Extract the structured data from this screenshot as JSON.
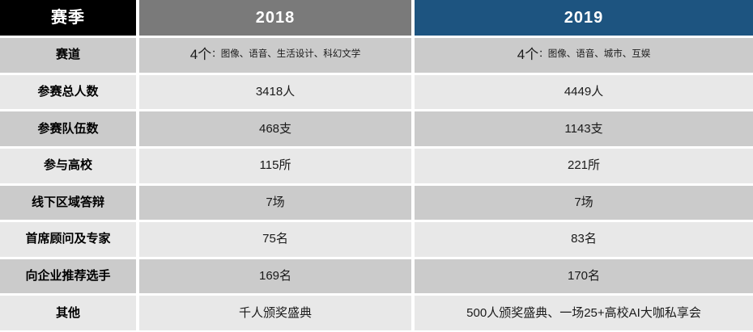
{
  "table": {
    "header": {
      "col0": "赛季",
      "col1": "2018",
      "col2": "2019"
    },
    "rows": [
      {
        "label": "赛道",
        "y2018_prefix": "4个",
        "y2018_rest": "：图像、语音、生活设计、科幻文学",
        "y2019_prefix": "4个",
        "y2019_rest": "：图像、语音、城市、互娱"
      },
      {
        "label": "参赛总人数",
        "y2018": "3418人",
        "y2019": "4449人"
      },
      {
        "label": "参赛队伍数",
        "y2018": "468支",
        "y2019": "1143支"
      },
      {
        "label": "参与高校",
        "y2018": "115所",
        "y2019": "221所"
      },
      {
        "label": "线下区域答辩",
        "y2018": "7场",
        "y2019": "7场"
      },
      {
        "label": "首席顾问及专家",
        "y2018": "75名",
        "y2019": "83名"
      },
      {
        "label": "向企业推荐选手",
        "y2018": "169名",
        "y2019": "170名"
      },
      {
        "label": "其他",
        "y2018": "千人颁奖盛典",
        "y2019": "500人颁奖盛典、一场25+高校AI大咖私享会"
      }
    ]
  },
  "colors": {
    "header_season_bg": "#000000",
    "header_2018_bg": "#7a7a7a",
    "header_2019_bg": "#1d5480",
    "row_dark_bg": "#cbcbcb",
    "row_light_bg": "#e8e8e8",
    "header_text": "#ffffff",
    "body_text": "#1a1a1a",
    "gap": "#ffffff"
  },
  "chart_data": {
    "type": "table",
    "title": "赛季对比 2018 vs 2019",
    "columns": [
      "赛季",
      "2018",
      "2019"
    ],
    "rows": [
      [
        "赛道",
        "4个：图像、语音、生活设计、科幻文学",
        "4个：图像、语音、城市、互娱"
      ],
      [
        "参赛总人数",
        "3418人",
        "4449人"
      ],
      [
        "参赛队伍数",
        "468支",
        "1143支"
      ],
      [
        "参与高校",
        "115所",
        "221所"
      ],
      [
        "线下区域答辩",
        "7场",
        "7场"
      ],
      [
        "首席顾问及专家",
        "75名",
        "83名"
      ],
      [
        "向企业推荐选手",
        "169名",
        "170名"
      ],
      [
        "其他",
        "千人颁奖盛典",
        "500人颁奖盛典、一场25+高校AI大咖私享会"
      ]
    ]
  }
}
